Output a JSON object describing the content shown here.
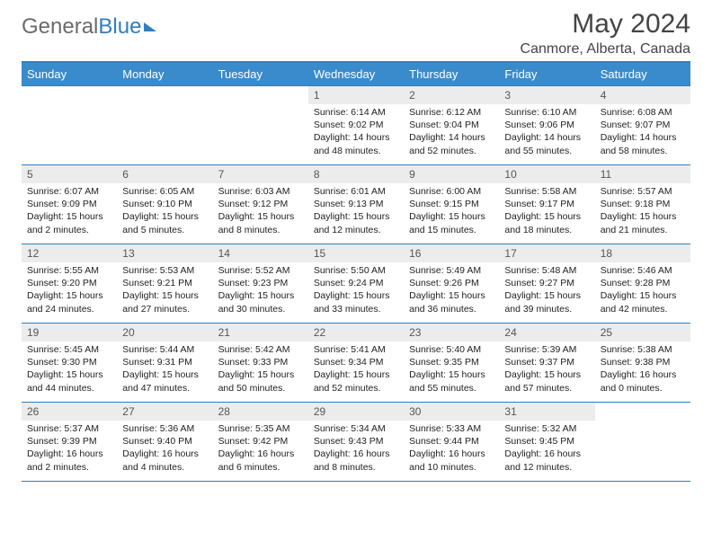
{
  "brand": {
    "part1": "General",
    "part2": "Blue"
  },
  "title": "May 2024",
  "location": "Canmore, Alberta, Canada",
  "colors": {
    "header_bg": "#3a8bcc",
    "header_border": "#2f7fbf",
    "daynum_bg": "#ececec",
    "text": "#222222",
    "logo_gray": "#6b6b6b",
    "logo_blue": "#2f7fbf"
  },
  "weekdays": [
    "Sunday",
    "Monday",
    "Tuesday",
    "Wednesday",
    "Thursday",
    "Friday",
    "Saturday"
  ],
  "weeks": [
    [
      null,
      null,
      null,
      {
        "n": "1",
        "sr": "Sunrise: 6:14 AM",
        "ss": "Sunset: 9:02 PM",
        "dl1": "Daylight: 14 hours",
        "dl2": "and 48 minutes."
      },
      {
        "n": "2",
        "sr": "Sunrise: 6:12 AM",
        "ss": "Sunset: 9:04 PM",
        "dl1": "Daylight: 14 hours",
        "dl2": "and 52 minutes."
      },
      {
        "n": "3",
        "sr": "Sunrise: 6:10 AM",
        "ss": "Sunset: 9:06 PM",
        "dl1": "Daylight: 14 hours",
        "dl2": "and 55 minutes."
      },
      {
        "n": "4",
        "sr": "Sunrise: 6:08 AM",
        "ss": "Sunset: 9:07 PM",
        "dl1": "Daylight: 14 hours",
        "dl2": "and 58 minutes."
      }
    ],
    [
      {
        "n": "5",
        "sr": "Sunrise: 6:07 AM",
        "ss": "Sunset: 9:09 PM",
        "dl1": "Daylight: 15 hours",
        "dl2": "and 2 minutes."
      },
      {
        "n": "6",
        "sr": "Sunrise: 6:05 AM",
        "ss": "Sunset: 9:10 PM",
        "dl1": "Daylight: 15 hours",
        "dl2": "and 5 minutes."
      },
      {
        "n": "7",
        "sr": "Sunrise: 6:03 AM",
        "ss": "Sunset: 9:12 PM",
        "dl1": "Daylight: 15 hours",
        "dl2": "and 8 minutes."
      },
      {
        "n": "8",
        "sr": "Sunrise: 6:01 AM",
        "ss": "Sunset: 9:13 PM",
        "dl1": "Daylight: 15 hours",
        "dl2": "and 12 minutes."
      },
      {
        "n": "9",
        "sr": "Sunrise: 6:00 AM",
        "ss": "Sunset: 9:15 PM",
        "dl1": "Daylight: 15 hours",
        "dl2": "and 15 minutes."
      },
      {
        "n": "10",
        "sr": "Sunrise: 5:58 AM",
        "ss": "Sunset: 9:17 PM",
        "dl1": "Daylight: 15 hours",
        "dl2": "and 18 minutes."
      },
      {
        "n": "11",
        "sr": "Sunrise: 5:57 AM",
        "ss": "Sunset: 9:18 PM",
        "dl1": "Daylight: 15 hours",
        "dl2": "and 21 minutes."
      }
    ],
    [
      {
        "n": "12",
        "sr": "Sunrise: 5:55 AM",
        "ss": "Sunset: 9:20 PM",
        "dl1": "Daylight: 15 hours",
        "dl2": "and 24 minutes."
      },
      {
        "n": "13",
        "sr": "Sunrise: 5:53 AM",
        "ss": "Sunset: 9:21 PM",
        "dl1": "Daylight: 15 hours",
        "dl2": "and 27 minutes."
      },
      {
        "n": "14",
        "sr": "Sunrise: 5:52 AM",
        "ss": "Sunset: 9:23 PM",
        "dl1": "Daylight: 15 hours",
        "dl2": "and 30 minutes."
      },
      {
        "n": "15",
        "sr": "Sunrise: 5:50 AM",
        "ss": "Sunset: 9:24 PM",
        "dl1": "Daylight: 15 hours",
        "dl2": "and 33 minutes."
      },
      {
        "n": "16",
        "sr": "Sunrise: 5:49 AM",
        "ss": "Sunset: 9:26 PM",
        "dl1": "Daylight: 15 hours",
        "dl2": "and 36 minutes."
      },
      {
        "n": "17",
        "sr": "Sunrise: 5:48 AM",
        "ss": "Sunset: 9:27 PM",
        "dl1": "Daylight: 15 hours",
        "dl2": "and 39 minutes."
      },
      {
        "n": "18",
        "sr": "Sunrise: 5:46 AM",
        "ss": "Sunset: 9:28 PM",
        "dl1": "Daylight: 15 hours",
        "dl2": "and 42 minutes."
      }
    ],
    [
      {
        "n": "19",
        "sr": "Sunrise: 5:45 AM",
        "ss": "Sunset: 9:30 PM",
        "dl1": "Daylight: 15 hours",
        "dl2": "and 44 minutes."
      },
      {
        "n": "20",
        "sr": "Sunrise: 5:44 AM",
        "ss": "Sunset: 9:31 PM",
        "dl1": "Daylight: 15 hours",
        "dl2": "and 47 minutes."
      },
      {
        "n": "21",
        "sr": "Sunrise: 5:42 AM",
        "ss": "Sunset: 9:33 PM",
        "dl1": "Daylight: 15 hours",
        "dl2": "and 50 minutes."
      },
      {
        "n": "22",
        "sr": "Sunrise: 5:41 AM",
        "ss": "Sunset: 9:34 PM",
        "dl1": "Daylight: 15 hours",
        "dl2": "and 52 minutes."
      },
      {
        "n": "23",
        "sr": "Sunrise: 5:40 AM",
        "ss": "Sunset: 9:35 PM",
        "dl1": "Daylight: 15 hours",
        "dl2": "and 55 minutes."
      },
      {
        "n": "24",
        "sr": "Sunrise: 5:39 AM",
        "ss": "Sunset: 9:37 PM",
        "dl1": "Daylight: 15 hours",
        "dl2": "and 57 minutes."
      },
      {
        "n": "25",
        "sr": "Sunrise: 5:38 AM",
        "ss": "Sunset: 9:38 PM",
        "dl1": "Daylight: 16 hours",
        "dl2": "and 0 minutes."
      }
    ],
    [
      {
        "n": "26",
        "sr": "Sunrise: 5:37 AM",
        "ss": "Sunset: 9:39 PM",
        "dl1": "Daylight: 16 hours",
        "dl2": "and 2 minutes."
      },
      {
        "n": "27",
        "sr": "Sunrise: 5:36 AM",
        "ss": "Sunset: 9:40 PM",
        "dl1": "Daylight: 16 hours",
        "dl2": "and 4 minutes."
      },
      {
        "n": "28",
        "sr": "Sunrise: 5:35 AM",
        "ss": "Sunset: 9:42 PM",
        "dl1": "Daylight: 16 hours",
        "dl2": "and 6 minutes."
      },
      {
        "n": "29",
        "sr": "Sunrise: 5:34 AM",
        "ss": "Sunset: 9:43 PM",
        "dl1": "Daylight: 16 hours",
        "dl2": "and 8 minutes."
      },
      {
        "n": "30",
        "sr": "Sunrise: 5:33 AM",
        "ss": "Sunset: 9:44 PM",
        "dl1": "Daylight: 16 hours",
        "dl2": "and 10 minutes."
      },
      {
        "n": "31",
        "sr": "Sunrise: 5:32 AM",
        "ss": "Sunset: 9:45 PM",
        "dl1": "Daylight: 16 hours",
        "dl2": "and 12 minutes."
      },
      null
    ]
  ]
}
